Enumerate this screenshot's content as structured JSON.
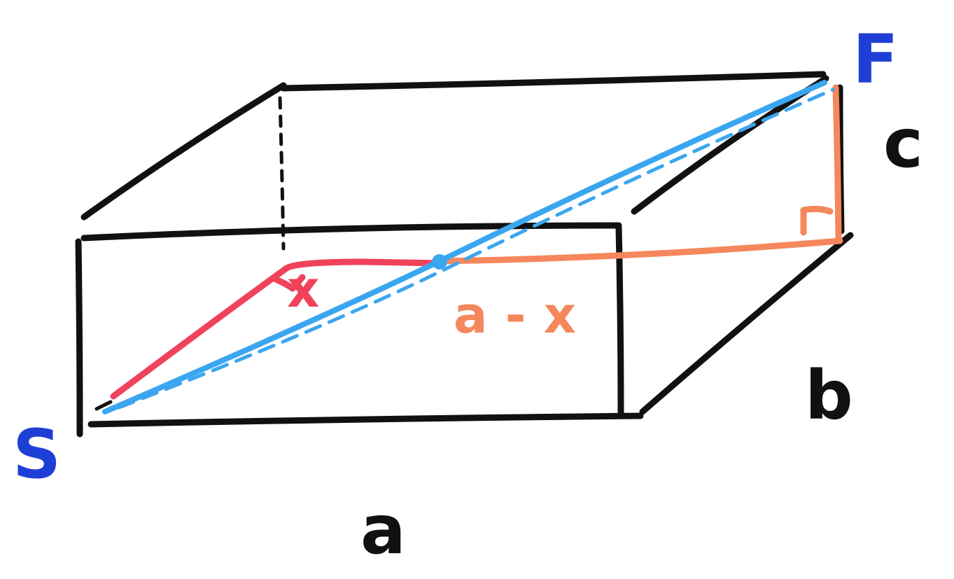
{
  "colors": {
    "box": "#111111",
    "hidden": "#111111",
    "path_red": "#f0425a",
    "path_orange": "#f5875c",
    "diagonal": "#3ba6f0",
    "point_label": "#1e3fd6",
    "edge_label": "#111111"
  },
  "labels": {
    "start": "S",
    "finish": "F",
    "length": "a",
    "width": "b",
    "height": "c",
    "segment_x": "x",
    "segment_rest": "a - x"
  }
}
